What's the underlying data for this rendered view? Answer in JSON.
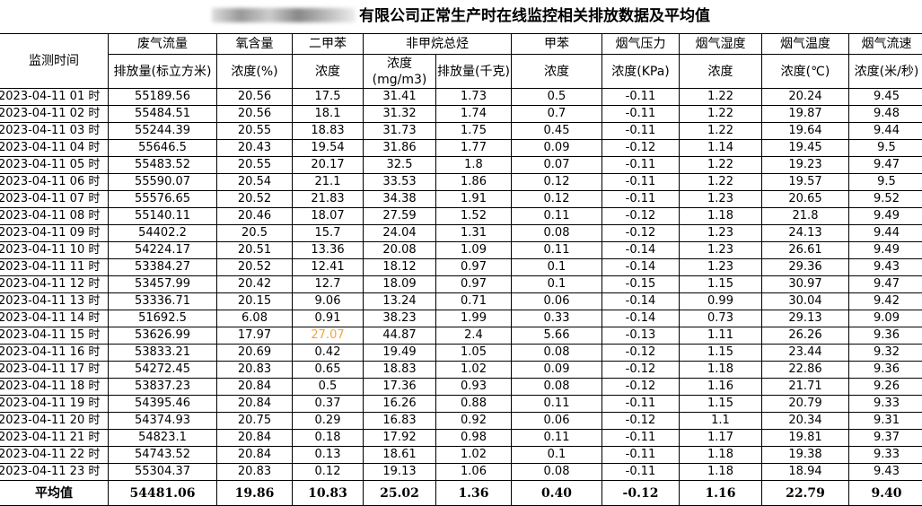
{
  "title": {
    "redacted_prefix": "[redacted]",
    "text": "有限公司正常生产时在线监控相关排放数据及平均值"
  },
  "header": {
    "time": "监测时间",
    "groups": [
      "废气流量",
      "氧含量",
      "二甲苯",
      "非甲烷总烃",
      "甲苯",
      "烟气压力",
      "烟气湿度",
      "烟气温度",
      "烟气流速"
    ],
    "subs": [
      "排放量(标立方米)",
      "浓度(%)",
      "浓度",
      "浓度(mg/m3)",
      "排放量(千克)",
      "浓度",
      "浓度(KPa)",
      "浓度",
      "浓度(℃)",
      "浓度(米/秒)"
    ]
  },
  "highlight_color": "#f4a53c",
  "rows": [
    [
      "2023-04-11 01 时",
      "55189.56",
      "20.56",
      "17.5",
      "31.41",
      "1.73",
      "0.5",
      "-0.11",
      "1.22",
      "20.24",
      "9.45"
    ],
    [
      "2023-04-11 02 时",
      "55484.51",
      "20.56",
      "18.1",
      "31.32",
      "1.74",
      "0.7",
      "-0.11",
      "1.22",
      "19.87",
      "9.48"
    ],
    [
      "2023-04-11 03 时",
      "55244.39",
      "20.55",
      "18.83",
      "31.73",
      "1.75",
      "0.45",
      "-0.11",
      "1.22",
      "19.64",
      "9.44"
    ],
    [
      "2023-04-11 04 时",
      "55646.5",
      "20.43",
      "19.54",
      "31.86",
      "1.77",
      "0.09",
      "-0.12",
      "1.14",
      "19.45",
      "9.5"
    ],
    [
      "2023-04-11 05 时",
      "55483.52",
      "20.55",
      "20.17",
      "32.5",
      "1.8",
      "0.07",
      "-0.11",
      "1.22",
      "19.23",
      "9.47"
    ],
    [
      "2023-04-11 06 时",
      "55590.07",
      "20.54",
      "21.1",
      "33.53",
      "1.86",
      "0.12",
      "-0.11",
      "1.22",
      "19.57",
      "9.5"
    ],
    [
      "2023-04-11 07 时",
      "55576.65",
      "20.52",
      "21.83",
      "34.38",
      "1.91",
      "0.12",
      "-0.11",
      "1.23",
      "20.65",
      "9.52"
    ],
    [
      "2023-04-11 08 时",
      "55140.11",
      "20.46",
      "18.07",
      "27.59",
      "1.52",
      "0.11",
      "-0.12",
      "1.18",
      "21.8",
      "9.49"
    ],
    [
      "2023-04-11 09 时",
      "54402.2",
      "20.5",
      "15.7",
      "24.04",
      "1.31",
      "0.08",
      "-0.12",
      "1.23",
      "24.13",
      "9.44"
    ],
    [
      "2023-04-11 10 时",
      "54224.17",
      "20.51",
      "13.36",
      "20.08",
      "1.09",
      "0.11",
      "-0.14",
      "1.23",
      "26.61",
      "9.49"
    ],
    [
      "2023-04-11 11 时",
      "53384.27",
      "20.52",
      "12.41",
      "18.12",
      "0.97",
      "0.1",
      "-0.14",
      "1.23",
      "29.36",
      "9.43"
    ],
    [
      "2023-04-11 12 时",
      "53457.99",
      "20.42",
      "12.7",
      "18.09",
      "0.97",
      "0.1",
      "-0.15",
      "1.15",
      "30.97",
      "9.47"
    ],
    [
      "2023-04-11 13 时",
      "53336.71",
      "20.15",
      "9.06",
      "13.24",
      "0.71",
      "0.06",
      "-0.14",
      "0.99",
      "30.04",
      "9.42"
    ],
    [
      "2023-04-11 14 时",
      "51692.5",
      "6.08",
      "0.91",
      "38.23",
      "1.99",
      "0.33",
      "-0.14",
      "0.73",
      "29.13",
      "9.09"
    ],
    [
      "2023-04-11 15 时",
      "53626.99",
      "17.97",
      "27.07",
      "44.87",
      "2.4",
      "5.66",
      "-0.13",
      "1.11",
      "26.26",
      "9.36"
    ],
    [
      "2023-04-11 16 时",
      "53833.21",
      "20.69",
      "0.42",
      "19.49",
      "1.05",
      "0.08",
      "-0.12",
      "1.15",
      "23.44",
      "9.32"
    ],
    [
      "2023-04-11 17 时",
      "54272.45",
      "20.83",
      "0.65",
      "18.83",
      "1.02",
      "0.09",
      "-0.12",
      "1.18",
      "22.86",
      "9.36"
    ],
    [
      "2023-04-11 18 时",
      "53837.23",
      "20.84",
      "0.5",
      "17.36",
      "0.93",
      "0.08",
      "-0.12",
      "1.16",
      "21.71",
      "9.26"
    ],
    [
      "2023-04-11 19 时",
      "54395.46",
      "20.84",
      "0.37",
      "16.26",
      "0.88",
      "0.11",
      "-0.11",
      "1.15",
      "20.79",
      "9.33"
    ],
    [
      "2023-04-11 20 时",
      "54374.93",
      "20.75",
      "0.29",
      "16.83",
      "0.92",
      "0.06",
      "-0.12",
      "1.1",
      "20.34",
      "9.31"
    ],
    [
      "2023-04-11 21 时",
      "54823.1",
      "20.84",
      "0.18",
      "17.92",
      "0.98",
      "0.11",
      "-0.11",
      "1.17",
      "19.81",
      "9.37"
    ],
    [
      "2023-04-11 22 时",
      "54743.52",
      "20.84",
      "0.13",
      "18.61",
      "1.02",
      "0.1",
      "-0.11",
      "1.18",
      "19.38",
      "9.33"
    ],
    [
      "2023-04-11 23 时",
      "55304.37",
      "20.83",
      "0.12",
      "19.13",
      "1.06",
      "0.08",
      "-0.11",
      "1.18",
      "18.94",
      "9.43"
    ]
  ],
  "highlighted_cells": [
    {
      "row": 14,
      "col": 3
    }
  ],
  "average": [
    "平均值",
    "54481.06",
    "19.86",
    "10.83",
    "25.02",
    "1.36",
    "0.40",
    "-0.12",
    "1.16",
    "22.79",
    "9.40"
  ]
}
